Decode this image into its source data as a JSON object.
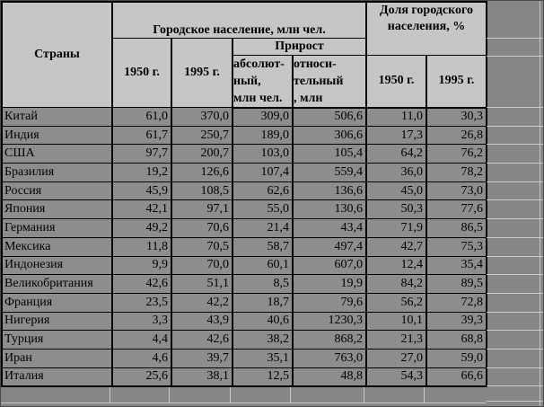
{
  "colors": {
    "header_cell_bg": "#c6c6c6",
    "data_cell_bg": "#8d8d8d",
    "outside_bg": "#868686",
    "table_border": "#000000",
    "outside_gridline": "#c9c9c9",
    "text": "#000000"
  },
  "header": {
    "countries": "Страны",
    "urban_population": "Городское население, млн чел.",
    "growth": "Прирост",
    "growth_absolute": "абсолют-\nный,\nмлн чел.",
    "growth_relative": "относи-\nтельный\n, млн",
    "share": "Доля городского\nнаселения, %",
    "year_1950": "1950 г.",
    "year_1995": "1995 г."
  },
  "rows": [
    {
      "country": "Китай",
      "pop_1950": "61,0",
      "pop_1995": "370,0",
      "growth_abs": "309,0",
      "growth_rel": "506,6",
      "share_1950": "11,0",
      "share_1995": "30,3"
    },
    {
      "country": "Индия",
      "pop_1950": "61,7",
      "pop_1995": "250,7",
      "growth_abs": "189,0",
      "growth_rel": "306,6",
      "share_1950": "17,3",
      "share_1995": "26,8"
    },
    {
      "country": "США",
      "pop_1950": "97,7",
      "pop_1995": "200,7",
      "growth_abs": "103,0",
      "growth_rel": "105,4",
      "share_1950": "64,2",
      "share_1995": "76,2"
    },
    {
      "country": "Бразилия",
      "pop_1950": "19,2",
      "pop_1995": "126,6",
      "growth_abs": "107,4",
      "growth_rel": "559,4",
      "share_1950": "36,0",
      "share_1995": "78,2"
    },
    {
      "country": "Россия",
      "pop_1950": "45,9",
      "pop_1995": "108,5",
      "growth_abs": "62,6",
      "growth_rel": "136,6",
      "share_1950": "45,0",
      "share_1995": "73,0"
    },
    {
      "country": "Япония",
      "pop_1950": "42,1",
      "pop_1995": "97,1",
      "growth_abs": "55,0",
      "growth_rel": "130,6",
      "share_1950": "50,3",
      "share_1995": "77,6"
    },
    {
      "country": "Германия",
      "pop_1950": "49,2",
      "pop_1995": "70,6",
      "growth_abs": "21,4",
      "growth_rel": "43,4",
      "share_1950": "71,9",
      "share_1995": "86,5"
    },
    {
      "country": "Мексика",
      "pop_1950": "11,8",
      "pop_1995": "70,5",
      "growth_abs": "58,7",
      "growth_rel": "497,4",
      "share_1950": "42,7",
      "share_1995": "75,3"
    },
    {
      "country": "Индонезия",
      "pop_1950": "9,9",
      "pop_1995": "70,0",
      "growth_abs": "60,1",
      "growth_rel": "607,0",
      "share_1950": "12,4",
      "share_1995": "35,4"
    },
    {
      "country": "Великобритания",
      "pop_1950": "42,6",
      "pop_1995": "51,1",
      "growth_abs": "8,5",
      "growth_rel": "19,9",
      "share_1950": "84,2",
      "share_1995": "89,5"
    },
    {
      "country": "Франция",
      "pop_1950": "23,5",
      "pop_1995": "42,2",
      "growth_abs": "18,7",
      "growth_rel": "79,6",
      "share_1950": "56,2",
      "share_1995": "72,8"
    },
    {
      "country": "Нигерия",
      "pop_1950": "3,3",
      "pop_1995": "43,9",
      "growth_abs": "40,6",
      "growth_rel": "1230,3",
      "share_1950": "10,1",
      "share_1995": "39,3"
    },
    {
      "country": "Турция",
      "pop_1950": "4,4",
      "pop_1995": "42,6",
      "growth_abs": "38,2",
      "growth_rel": "868,2",
      "share_1950": "21,3",
      "share_1995": "68,8"
    },
    {
      "country": "Иран",
      "pop_1950": "4,6",
      "pop_1995": "39,7",
      "growth_abs": "35,1",
      "growth_rel": "763,0",
      "share_1950": "27,0",
      "share_1995": "59,0"
    },
    {
      "country": "Италия",
      "pop_1950": "25,6",
      "pop_1995": "38,1",
      "growth_abs": "12,5",
      "growth_rel": "48,8",
      "share_1950": "54,3",
      "share_1995": "66,6"
    }
  ]
}
